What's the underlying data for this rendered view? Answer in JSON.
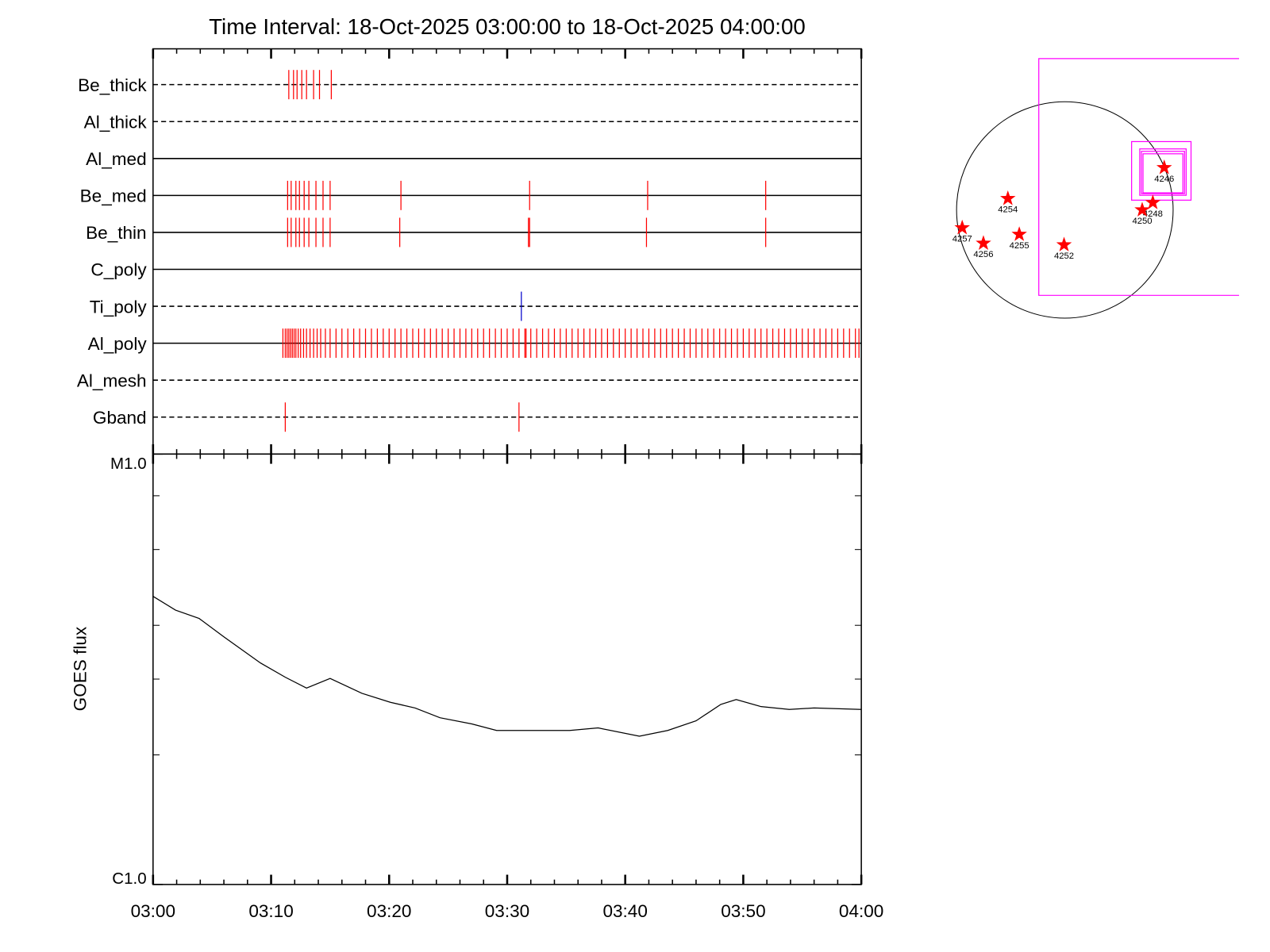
{
  "chart_data": [
    {
      "type": "event",
      "title": "Time Interval: 18-Oct-2025 03:00:00 to 18-Oct-2025 04:00:00",
      "xlim": [
        0,
        60
      ],
      "xticks": [
        0,
        10,
        20,
        30,
        40,
        50,
        60
      ],
      "xminorticks": [
        2,
        4,
        6,
        8,
        12,
        14,
        16,
        18,
        22,
        24,
        26,
        28,
        32,
        34,
        36,
        38,
        42,
        44,
        46,
        48,
        52,
        54,
        56,
        58
      ],
      "filters": [
        {
          "name": "Be_thick",
          "line_style": "dashed",
          "color": "#ff0000",
          "events": [
            11.5,
            11.9,
            12.2,
            12.6,
            13.0,
            13.6,
            14.1,
            15.1
          ]
        },
        {
          "name": "Al_thick",
          "line_style": "dashed",
          "color": "#ff0000",
          "events": []
        },
        {
          "name": "Al_med",
          "line_style": "solid",
          "color": "#ff0000",
          "events": []
        },
        {
          "name": "Be_med",
          "line_style": "solid",
          "color": "#ff0000",
          "events": [
            11.4,
            11.7,
            12.1,
            12.4,
            12.8,
            13.2,
            13.8,
            14.4,
            15.0,
            21.0,
            31.9,
            41.9,
            51.9
          ]
        },
        {
          "name": "Be_thin",
          "line_style": "solid",
          "color": "#ff0000",
          "events": [
            11.4,
            11.7,
            12.1,
            12.4,
            12.8,
            13.2,
            13.8,
            14.4,
            15.0,
            20.9,
            31.8,
            31.9,
            41.8,
            51.9
          ]
        },
        {
          "name": "C_poly",
          "line_style": "solid",
          "color": "#ff0000",
          "events": []
        },
        {
          "name": "Ti_poly",
          "line_style": "dashed",
          "color": "#0000cc",
          "events": [
            31.2
          ]
        },
        {
          "name": "Al_poly",
          "line_style": "solid",
          "color": "#ff0000",
          "events": [
            11.0,
            11.2,
            11.35,
            11.5,
            11.65,
            11.8,
            11.95,
            12.1,
            12.3,
            12.5,
            12.75,
            13.0,
            13.3,
            13.6,
            13.9,
            14.2,
            14.6,
            15.0,
            15.5,
            16,
            16.5,
            17,
            17.5,
            18,
            18.5,
            19,
            19.5,
            20,
            20.5,
            21,
            21.5,
            22,
            22.5,
            23,
            23.5,
            24,
            24.5,
            25,
            25.5,
            26,
            26.5,
            27,
            27.5,
            28,
            28.5,
            29,
            29.5,
            30,
            30.5,
            31,
            31.5,
            31.6,
            32,
            32.5,
            33,
            33.5,
            34,
            34.5,
            35,
            35.5,
            36,
            36.5,
            37,
            37.5,
            38,
            38.5,
            39,
            39.5,
            40,
            40.5,
            41,
            41.5,
            42,
            42.5,
            43,
            43.5,
            44,
            44.5,
            45,
            45.5,
            46,
            46.5,
            47,
            47.5,
            48,
            48.5,
            49,
            49.5,
            50,
            50.5,
            51,
            51.5,
            52,
            52.5,
            53,
            53.5,
            54,
            54.5,
            55,
            55.5,
            56,
            56.5,
            57,
            57.5,
            58,
            58.5,
            59,
            59.5,
            59.8
          ]
        },
        {
          "name": "Al_mesh",
          "line_style": "dashed",
          "color": "#ff0000",
          "events": []
        },
        {
          "name": "Gband",
          "line_style": "dashed",
          "color": "#ff0000",
          "events": [
            11.2,
            31.0
          ]
        }
      ]
    },
    {
      "type": "line",
      "ylabel": "GOES flux",
      "log_scale": true,
      "color": "#000000",
      "xlim": [
        0,
        60
      ],
      "xticks": [
        {
          "value": 0,
          "label": "03:00"
        },
        {
          "value": 10,
          "label": "03:10"
        },
        {
          "value": 20,
          "label": "03:20"
        },
        {
          "value": 30,
          "label": "03:30"
        },
        {
          "value": 40,
          "label": "03:40"
        },
        {
          "value": 50,
          "label": "03:50"
        },
        {
          "value": 60,
          "label": "04:00"
        }
      ],
      "xminorticks": [
        2,
        4,
        6,
        8,
        12,
        14,
        16,
        18,
        22,
        24,
        26,
        28,
        32,
        34,
        36,
        38,
        42,
        44,
        46,
        48,
        52,
        54,
        56,
        58
      ],
      "ylim": [
        1e-06,
        1e-05
      ],
      "yticks": [
        {
          "value": 1e-05,
          "label": "M1.0"
        },
        {
          "value": 1e-06,
          "label": "C1.0"
        }
      ],
      "yminorticks": [
        2e-06,
        3e-06,
        4e-06,
        6e-06,
        8e-06
      ],
      "x": [
        0,
        1.9,
        3.9,
        6,
        9.1,
        11.2,
        13,
        15,
        17.7,
        20.1,
        22.2,
        24.3,
        27,
        29.1,
        31.9,
        35.3,
        37.7,
        41.2,
        43.6,
        46,
        48.1,
        49.4,
        51.5,
        53.9,
        56,
        60
      ],
      "values": [
        4.67e-06,
        4.34e-06,
        4.15e-06,
        3.76e-06,
        3.27e-06,
        3.03e-06,
        2.86e-06,
        3.01e-06,
        2.78e-06,
        2.65e-06,
        2.57e-06,
        2.44e-06,
        2.36e-06,
        2.28e-06,
        2.28e-06,
        2.28e-06,
        2.31e-06,
        2.21e-06,
        2.28e-06,
        2.4e-06,
        2.62e-06,
        2.69e-06,
        2.59e-06,
        2.55e-06,
        2.57e-06,
        2.55e-06
      ]
    },
    {
      "type": "map",
      "color": "#ff0000",
      "labels": [
        "4246",
        "4254",
        "4248",
        "4250",
        "4257",
        "4256",
        "4255",
        "4252"
      ],
      "x": [
        881,
        -505,
        780,
        686,
        -910,
        -722,
        -404,
        -7
      ],
      "y": [
        375,
        101,
        65,
        0,
        -159,
        -296,
        -217,
        -310
      ]
    }
  ]
}
